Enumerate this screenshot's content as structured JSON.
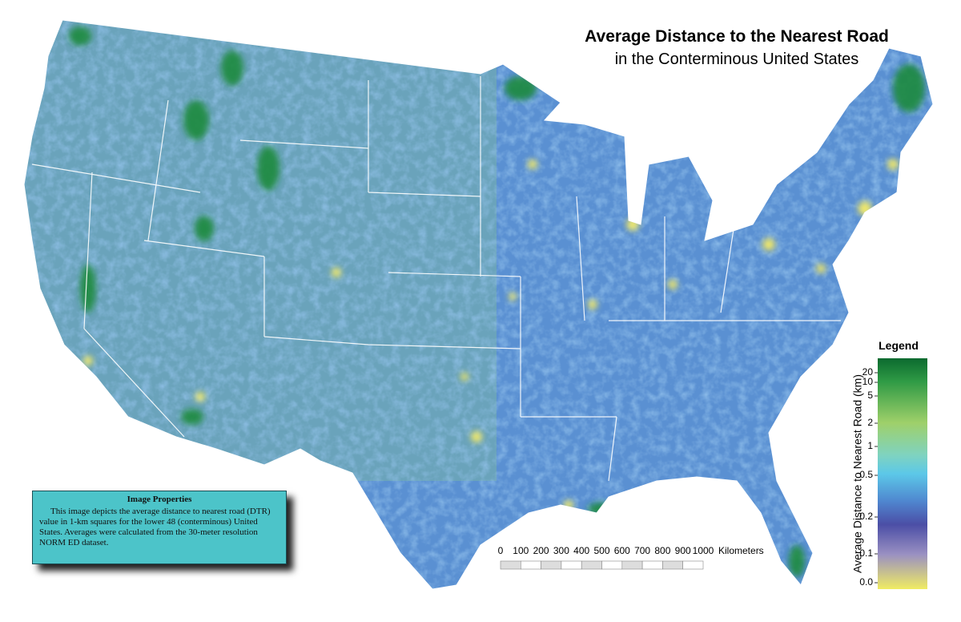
{
  "title": "Average Distance to the Nearest Road",
  "subtitle": "in the Conterminous United States",
  "legend": {
    "title": "Legend",
    "label": "Average Distance to Nearest Road (km)",
    "ticks": [
      20,
      10,
      5,
      2,
      1,
      0.5,
      0.2,
      0.1,
      {
        "value": 0,
        "label": "0.0"
      }
    ]
  },
  "scale_bar": {
    "ticks": [
      0,
      100,
      200,
      300,
      400,
      500,
      600,
      700,
      800,
      900,
      1000
    ],
    "unit": "Kilometers"
  },
  "info_box": {
    "title": "Image Properties",
    "text": "This image depicts the average distance to nearest road (DTR) value in 1-km squares for the lower 48 (conterminous) United States.  Averages were calculated from the 30-meter resolution NORM ED dataset."
  }
}
